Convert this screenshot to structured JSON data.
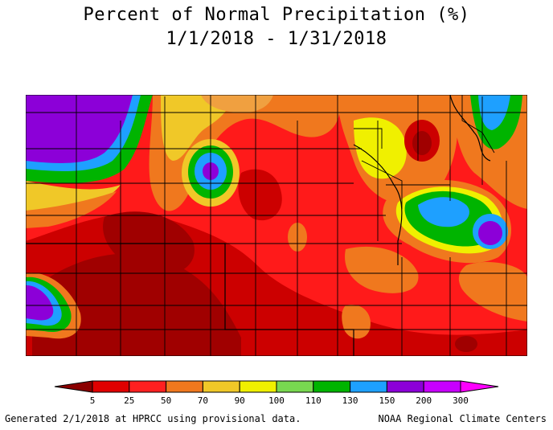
{
  "title": {
    "line1": "Percent of Normal Precipitation (%)",
    "line2": "1/1/2018 - 1/31/2018"
  },
  "map": {
    "region_description": "precipitation percent-of-normal contour map",
    "base_color": "#ff0000",
    "border_color": "#000000"
  },
  "colorbar": {
    "labels": [
      "5",
      "25",
      "50",
      "70",
      "90",
      "100",
      "110",
      "130",
      "150",
      "200",
      "300"
    ],
    "colors": [
      "#a00000",
      "#e00000",
      "#ff2020",
      "#f0781e",
      "#f0c828",
      "#f0f000",
      "#78d850",
      "#00b400",
      "#1ea0ff",
      "#8c00d8",
      "#c800ff"
    ],
    "arrow_left_color": "#8b0000",
    "arrow_right_color": "#ff00ff"
  },
  "footer": {
    "left": "Generated 2/1/2018 at HPRCC using provisional data.",
    "right": "NOAA Regional Climate Centers"
  }
}
